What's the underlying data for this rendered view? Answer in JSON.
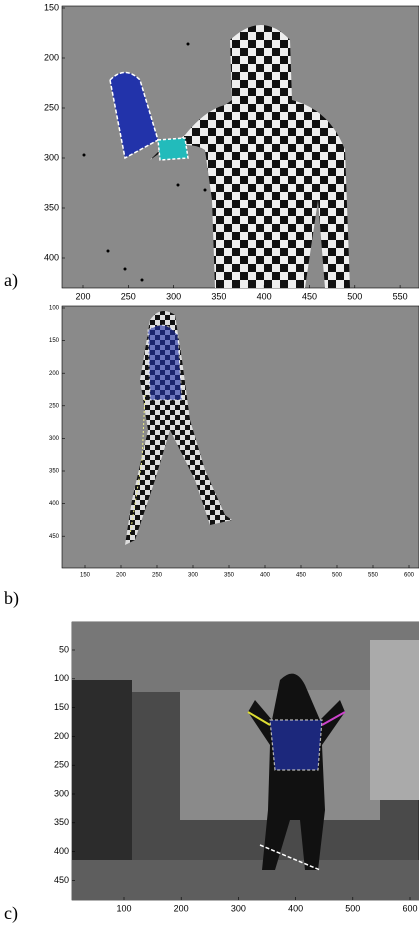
{
  "panels": [
    {
      "label": "a)",
      "yticks": [
        150,
        200,
        250,
        300,
        350,
        400
      ],
      "xticks": [
        200,
        250,
        300,
        350,
        400,
        450,
        500,
        550
      ]
    },
    {
      "label": "b)",
      "yticks": [
        100,
        150,
        200,
        250,
        300,
        350,
        400,
        450
      ],
      "xticks": [
        150,
        200,
        250,
        300,
        350,
        400,
        450,
        500,
        550,
        600
      ]
    },
    {
      "label": "c)",
      "yticks": [
        50,
        100,
        150,
        200,
        250,
        300,
        350,
        400,
        450
      ],
      "xticks": [
        100,
        200,
        300,
        400,
        500,
        600
      ]
    }
  ]
}
